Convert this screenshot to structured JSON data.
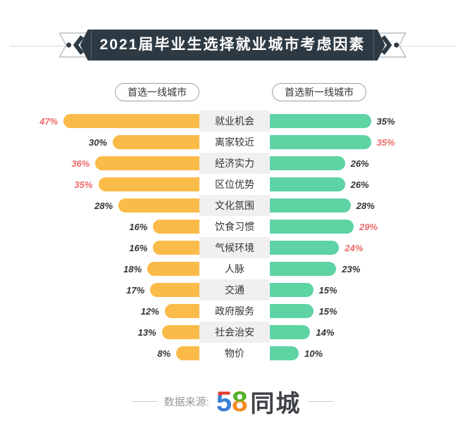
{
  "title": "2021届毕业生选择就业城市考虑因素",
  "legend": {
    "left": "首选一线城市",
    "right": "首选新一线城市"
  },
  "chart_data": {
    "type": "bar",
    "subtype": "bidirectional-horizontal",
    "categories": [
      "就业机会",
      "离家较近",
      "经济实力",
      "区位优势",
      "文化氛围",
      "饮食习惯",
      "气候环境",
      "人脉",
      "交通",
      "政府服务",
      "社会治安",
      "物价"
    ],
    "series": [
      {
        "name": "首选一线城市",
        "side": "left",
        "color": "#FBBB49",
        "values": [
          47,
          30,
          36,
          35,
          28,
          16,
          16,
          18,
          17,
          12,
          13,
          8
        ],
        "highlight_indices": [
          0,
          2,
          3
        ]
      },
      {
        "name": "首选新一线城市",
        "side": "right",
        "color": "#5ED3A4",
        "values": [
          35,
          35,
          26,
          26,
          28,
          29,
          24,
          23,
          15,
          15,
          14,
          10
        ],
        "highlight_indices": [
          1,
          5,
          6
        ]
      }
    ],
    "value_suffix": "%",
    "xlim": [
      0,
      47
    ],
    "highlight_color": "#ED6A6A",
    "value_color": "#333333",
    "legend_position": "top",
    "grid": false
  },
  "footer": {
    "source_label": "数据来源:",
    "logo": {
      "five": "5",
      "eight": "8",
      "suffix": "同城"
    }
  },
  "colors": {
    "ribbon": "#2E3A43",
    "left_bar": "#FBBB49",
    "right_bar": "#5ED3A4",
    "highlight_value": "#ED6A6A",
    "row_alt_bg": "#F0F0F1",
    "logo_blue": "#3A7FD5",
    "logo_red": "#E6392E",
    "logo_green": "#55B42D",
    "logo_orange": "#F28A1E"
  }
}
